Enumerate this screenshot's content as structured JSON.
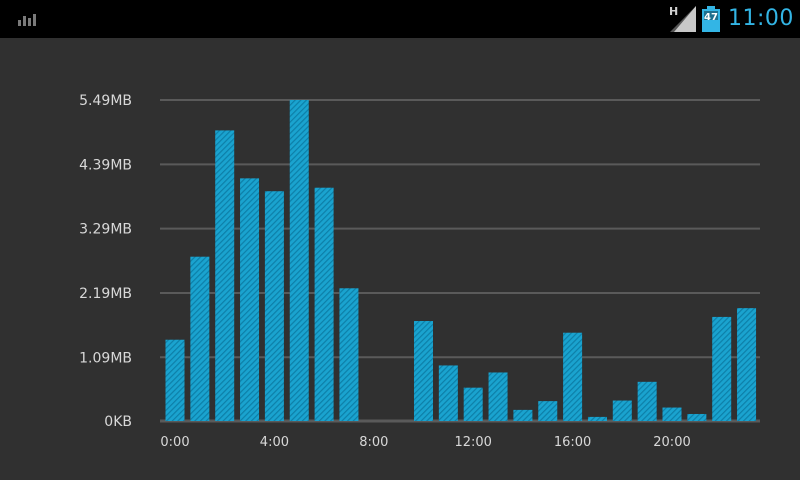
{
  "status_bar": {
    "app_icon": "bar-chart-icon",
    "network_type": "H",
    "battery_level": "47",
    "time": "11:00",
    "clock_color": "#33b5e5"
  },
  "colors": {
    "background": "#303030",
    "grid": "#5a5a5a",
    "bar": "#1aa3cf",
    "bar_stripe": "#0d7fa8"
  },
  "chart_data": {
    "type": "bar",
    "title": "",
    "xlabel": "",
    "ylabel": "",
    "y_unit": "MB",
    "ylim": [
      0,
      5.49
    ],
    "y_ticks": [
      0,
      1.09,
      2.19,
      3.29,
      4.39,
      5.49
    ],
    "y_tick_labels": [
      "0KB",
      "1.09MB",
      "2.19MB",
      "3.29MB",
      "4.39MB",
      "5.49MB"
    ],
    "categories": [
      "0:00",
      "1:00",
      "2:00",
      "3:00",
      "4:00",
      "5:00",
      "6:00",
      "7:00",
      "8:00",
      "9:00",
      "10:00",
      "11:00",
      "12:00",
      "13:00",
      "14:00",
      "15:00",
      "16:00",
      "17:00",
      "18:00",
      "19:00",
      "20:00",
      "21:00",
      "22:00",
      "23:00"
    ],
    "x_tick_labels": [
      "0:00",
      "4:00",
      "8:00",
      "12:00",
      "16:00",
      "20:00"
    ],
    "x_tick_hours": [
      0,
      4,
      8,
      12,
      16,
      20
    ],
    "values": [
      1.39,
      2.81,
      4.97,
      4.15,
      3.93,
      5.49,
      3.99,
      2.27,
      0,
      0,
      1.71,
      0.95,
      0.57,
      0.83,
      0.19,
      0.34,
      1.51,
      0.07,
      0.35,
      0.67,
      0.23,
      0.12,
      1.78,
      1.93
    ],
    "grid": true,
    "legend": "none"
  }
}
